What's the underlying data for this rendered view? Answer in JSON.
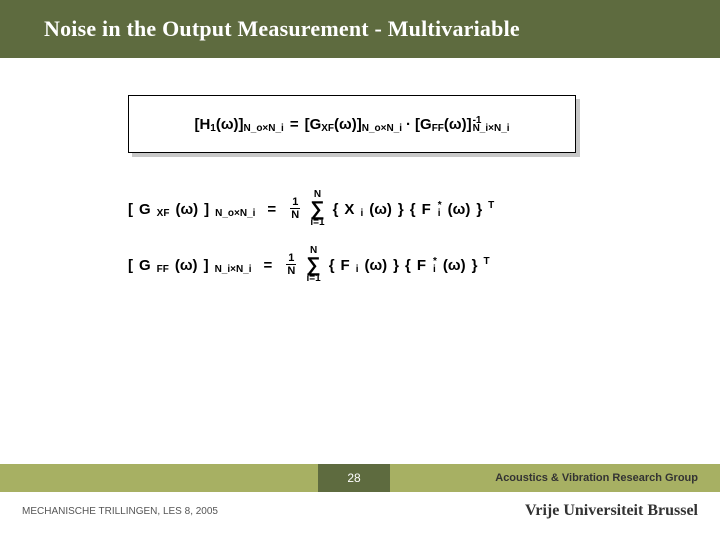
{
  "title": "Noise in the Output Measurement - Multivariable",
  "colors": {
    "bar_dark": "#5e6b3f",
    "bar_light": "#a7b063",
    "text_white": "#ffffff",
    "text_dark": "#333333",
    "shadow": "#c8c8c8",
    "border": "#000000"
  },
  "main_equation": {
    "lhs": {
      "label": "H",
      "index": "1",
      "arg": "(ω)",
      "dims": "N_o×N_i"
    },
    "eq": "=",
    "term1": {
      "label": "G",
      "sub": "XF",
      "arg": "(ω)",
      "dims": "N_o×N_i"
    },
    "dot": "·",
    "term2": {
      "label": "G",
      "sub": "FF",
      "arg": "(ω)",
      "dims": "N_i×N_i",
      "exp": "-1"
    }
  },
  "eq_gxf": {
    "lhs": {
      "label": "G",
      "sub": "XF",
      "arg": "(ω)",
      "dims": "N_o×N_i"
    },
    "eq": "=",
    "frac": {
      "num": "1",
      "den": "N"
    },
    "sum": {
      "top": "N",
      "bot": "i=1"
    },
    "vec1": {
      "label": "X",
      "idx": "i",
      "arg": "(ω)"
    },
    "vec2": {
      "label": "F",
      "idx": "i",
      "sup": "*",
      "arg": "(ω)",
      "outer_sup": "T"
    }
  },
  "eq_gff": {
    "lhs": {
      "label": "G",
      "sub": "FF",
      "arg": "(ω)",
      "dims": "N_i×N_i"
    },
    "eq": "=",
    "frac": {
      "num": "1",
      "den": "N"
    },
    "sum": {
      "top": "N",
      "bot": "i=1"
    },
    "vec1": {
      "label": "F",
      "idx": "i",
      "arg": "(ω)"
    },
    "vec2": {
      "label": "F",
      "idx": "i",
      "sup": "*",
      "arg": "(ω)",
      "outer_sup": "T"
    }
  },
  "footer": {
    "page": "28",
    "group": "Acoustics & Vibration Research Group",
    "course": "MECHANISCHE TRILLINGEN, LES 8, 2005",
    "university": "Vrije Universiteit Brussel"
  }
}
